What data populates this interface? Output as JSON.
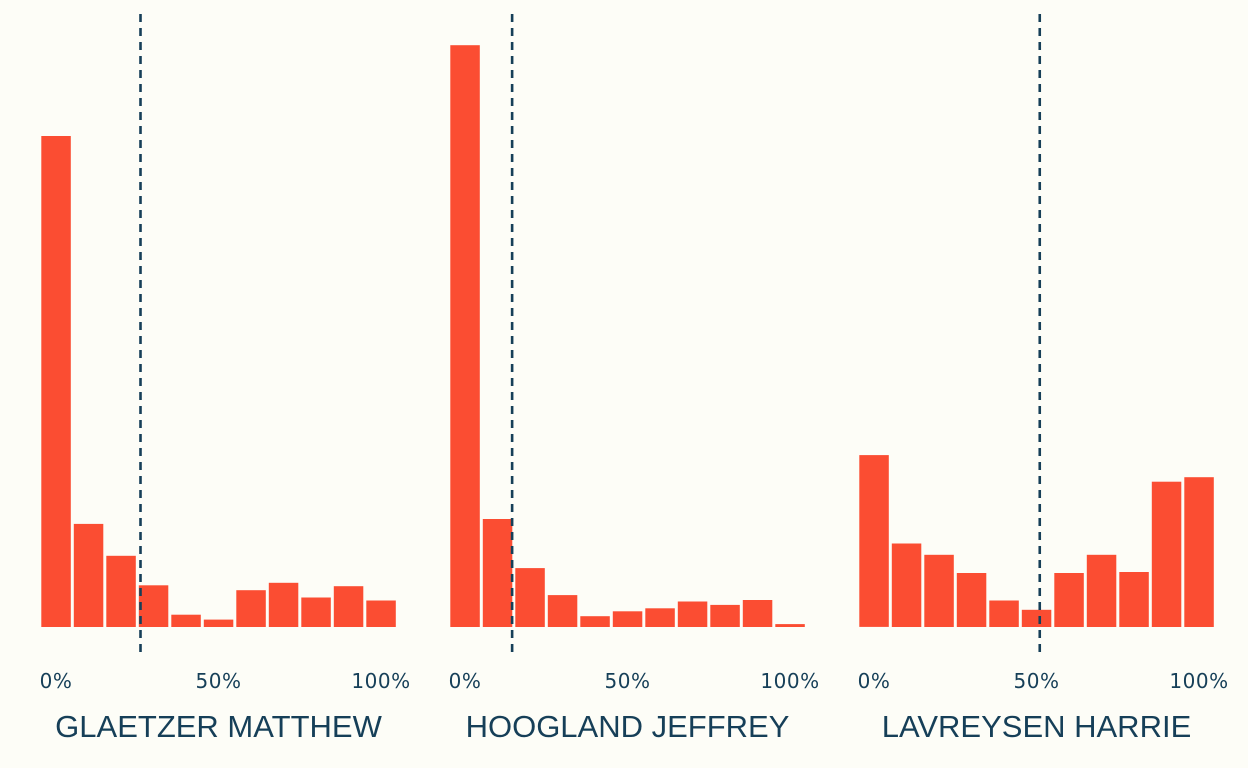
{
  "colors": {
    "background": "#fdfdf7",
    "bar": "#fb4d32",
    "text": "#163f58",
    "dashed_line": "#163f58"
  },
  "chart_data": [
    {
      "type": "bar",
      "title": "GLAETZER MATTHEW",
      "x_tick_labels": [
        "0%",
        "50%",
        "100%"
      ],
      "bin_edges_percent": [
        0,
        10,
        20,
        30,
        40,
        50,
        60,
        70,
        80,
        90,
        100,
        110
      ],
      "values": [
        100,
        21,
        14.5,
        8.5,
        2.5,
        1.5,
        7.5,
        9,
        6,
        8.3,
        5.4
      ],
      "reference_line_percent": 26,
      "grid": false,
      "legend": "none"
    },
    {
      "type": "bar",
      "title": "HOOGLAND JEFFREY",
      "x_tick_labels": [
        "0%",
        "50%",
        "100%"
      ],
      "bin_edges_percent": [
        0,
        10,
        20,
        30,
        40,
        50,
        60,
        70,
        80,
        90,
        100,
        110
      ],
      "values": [
        118.5,
        22,
        12,
        6.5,
        2.2,
        3.2,
        3.8,
        5.2,
        4.5,
        5.5,
        0.6
      ],
      "reference_line_percent": 14.5,
      "grid": false,
      "legend": "none"
    },
    {
      "type": "bar",
      "title": "LAVREYSEN HARRIE",
      "x_tick_labels": [
        "0%",
        "50%",
        "100%"
      ],
      "bin_edges_percent": [
        0,
        10,
        20,
        30,
        40,
        50,
        60,
        70,
        80,
        90,
        100,
        110
      ],
      "values": [
        35,
        17,
        14.7,
        11,
        5.4,
        3.5,
        11,
        14.7,
        11.2,
        29.6,
        30.5
      ],
      "reference_line_percent": 51,
      "grid": false,
      "legend": "none"
    }
  ]
}
